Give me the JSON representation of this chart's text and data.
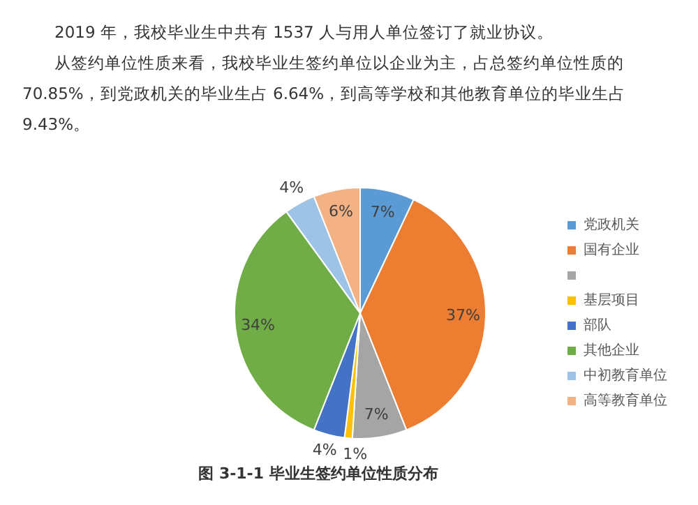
{
  "chart_data": {
    "type": "pie",
    "title": "图 3-1-1 毕业生签约单位性质分布",
    "annotations": [
      "2019 年，我校毕业生中共有 1537 人与用人单位签订了就业协议。",
      "从签约单位性质来看，我校毕业生签约单位以企业为主，占总签约单位性质的 70.85%，到党政机关的毕业生占 6.64%，到高等学校和其他教育单位的毕业生占 9.43%。"
    ],
    "categories": [
      "党政机关",
      "国有企业",
      null,
      "基层项目",
      "部队",
      "其他企业",
      "中初教育单位",
      "高等教育单位"
    ],
    "values": [
      7,
      37,
      7,
      1,
      4,
      34,
      4,
      6
    ],
    "colors": [
      "#5b9bd5",
      "#ed7d31",
      "#a5a5a5",
      "#ffc000",
      "#4472c4",
      "#70ad47",
      "#9dc3e6",
      "#f4b183"
    ],
    "value_labels": [
      "7%",
      "37%",
      "7%",
      "1%",
      "4%",
      "34%",
      "4%",
      "6%"
    ],
    "legend": "right"
  }
}
